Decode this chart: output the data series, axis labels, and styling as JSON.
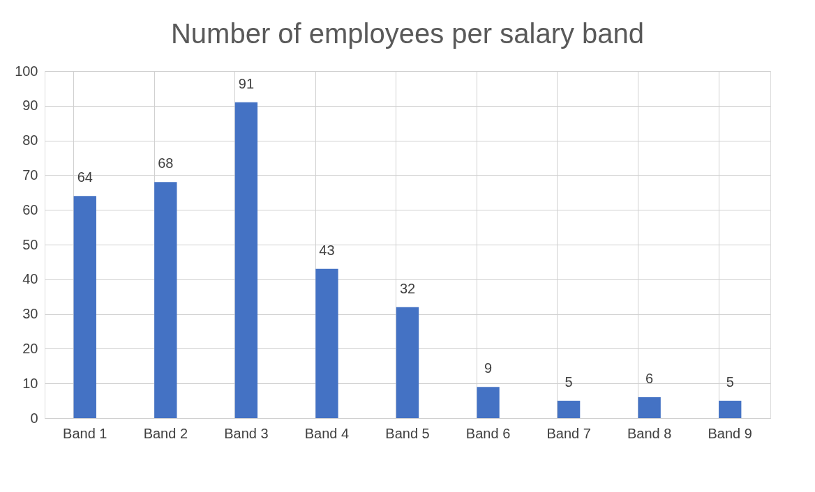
{
  "chart_data": {
    "type": "bar",
    "title": "Number of employees per salary band",
    "categories": [
      "Band 1",
      "Band 2",
      "Band 3",
      "Band 4",
      "Band 5",
      "Band 6",
      "Band 7",
      "Band 8",
      "Band 9"
    ],
    "values": [
      64,
      68,
      91,
      43,
      32,
      9,
      5,
      6,
      5
    ],
    "color": "#4472c4",
    "ylim": [
      0,
      100
    ],
    "yticks": [
      0,
      10,
      20,
      30,
      40,
      50,
      60,
      70,
      80,
      90,
      100
    ],
    "grid": true,
    "data_labels": true
  }
}
